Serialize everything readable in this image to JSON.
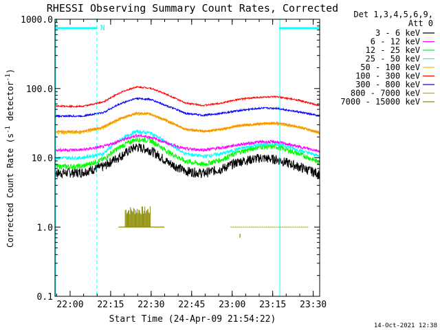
{
  "chart_data": {
    "type": "line",
    "title": "RHESSI Observing Summary Count Rates, Corrected",
    "xlabel": "Start Time (24-Apr-09 21:54:22)",
    "ylabel": "Corrected Count Rate (s",
    "ylabel_sup1": "-1",
    "ylabel_mid": " detector",
    "ylabel_sup2": "-1",
    "ylabel_end": ")",
    "yscale": "log",
    "ylim": [
      0.1,
      1000.0
    ],
    "y_ticks": [
      {
        "value": 1000.0,
        "label": "1000.0"
      },
      {
        "value": 100.0,
        "label": "100.0"
      },
      {
        "value": 10.0,
        "label": "10.0"
      },
      {
        "value": 1.0,
        "label": "1.0"
      },
      {
        "value": 0.1,
        "label": "0.1"
      }
    ],
    "x_unit": "minutes since 21:54:22",
    "xlim": [
      0,
      98
    ],
    "x_ticks": [
      {
        "value": 5.6,
        "label": "22:00"
      },
      {
        "value": 20.6,
        "label": "22:15"
      },
      {
        "value": 35.6,
        "label": "22:30"
      },
      {
        "value": 50.6,
        "label": "22:45"
      },
      {
        "value": 65.6,
        "label": "23:00"
      },
      {
        "value": 80.6,
        "label": "23:15"
      },
      {
        "value": 95.6,
        "label": "23:30"
      }
    ],
    "legend": {
      "position": "top-right",
      "header1": "Det 1,3,4,5,6,9,",
      "header2": "Att 0"
    },
    "series": [
      {
        "name": "3 - 6 keV",
        "color": "#000000",
        "points": [
          [
            0,
            6
          ],
          [
            10,
            6.2
          ],
          [
            18,
            7.5
          ],
          [
            25,
            11
          ],
          [
            30,
            14.5
          ],
          [
            35,
            13
          ],
          [
            42,
            8.5
          ],
          [
            48,
            6.5
          ],
          [
            55,
            6
          ],
          [
            62,
            7
          ],
          [
            68,
            8.8
          ],
          [
            76,
            10
          ],
          [
            82,
            9.5
          ],
          [
            90,
            7.5
          ],
          [
            98,
            5.8
          ]
        ]
      },
      {
        "name": "6 - 12 keV",
        "color": "#ff00ff",
        "points": [
          [
            0,
            13
          ],
          [
            10,
            13
          ],
          [
            18,
            14.5
          ],
          [
            25,
            18
          ],
          [
            30,
            21
          ],
          [
            35,
            20
          ],
          [
            42,
            16
          ],
          [
            48,
            13.5
          ],
          [
            55,
            13
          ],
          [
            62,
            14
          ],
          [
            68,
            15.5
          ],
          [
            76,
            17
          ],
          [
            82,
            17
          ],
          [
            90,
            14.5
          ],
          [
            98,
            12.5
          ]
        ]
      },
      {
        "name": "12 - 25 keV",
        "color": "#00ff00",
        "points": [
          [
            0,
            7.5
          ],
          [
            10,
            7.5
          ],
          [
            18,
            9.5
          ],
          [
            25,
            15
          ],
          [
            30,
            18.5
          ],
          [
            35,
            18
          ],
          [
            42,
            12
          ],
          [
            48,
            9
          ],
          [
            55,
            8
          ],
          [
            62,
            9.5
          ],
          [
            68,
            12
          ],
          [
            76,
            14.5
          ],
          [
            82,
            14.5
          ],
          [
            90,
            11.5
          ],
          [
            98,
            8.5
          ]
        ]
      },
      {
        "name": "25 - 50 keV",
        "color": "#00ffff",
        "points": [
          [
            0,
            10
          ],
          [
            10,
            10
          ],
          [
            18,
            11.5
          ],
          [
            25,
            19
          ],
          [
            30,
            24
          ],
          [
            35,
            23
          ],
          [
            42,
            16
          ],
          [
            48,
            11.5
          ],
          [
            55,
            10.5
          ],
          [
            62,
            11.5
          ],
          [
            68,
            13.5
          ],
          [
            76,
            15.5
          ],
          [
            82,
            16
          ],
          [
            90,
            13
          ],
          [
            98,
            10.5
          ]
        ]
      },
      {
        "name": "50 - 100 keV",
        "color": "#e6c800",
        "points": [
          [
            0,
            23
          ],
          [
            10,
            23
          ],
          [
            18,
            27
          ],
          [
            25,
            37
          ],
          [
            30,
            43
          ],
          [
            35,
            43
          ],
          [
            42,
            34
          ],
          [
            48,
            26
          ],
          [
            55,
            24
          ],
          [
            62,
            26
          ],
          [
            68,
            29
          ],
          [
            76,
            31
          ],
          [
            82,
            31
          ],
          [
            90,
            28
          ],
          [
            98,
            22.5
          ]
        ]
      },
      {
        "name": "100 - 300 keV",
        "color": "#ff0000",
        "points": [
          [
            0,
            56
          ],
          [
            10,
            55
          ],
          [
            18,
            64
          ],
          [
            25,
            90
          ],
          [
            30,
            105
          ],
          [
            35,
            102
          ],
          [
            42,
            80
          ],
          [
            48,
            62
          ],
          [
            55,
            57
          ],
          [
            62,
            62
          ],
          [
            68,
            70
          ],
          [
            76,
            75
          ],
          [
            82,
            76
          ],
          [
            90,
            68
          ],
          [
            98,
            56
          ]
        ]
      },
      {
        "name": "300 - 800 keV",
        "color": "#0000ff",
        "points": [
          [
            0,
            40
          ],
          [
            10,
            40
          ],
          [
            18,
            45
          ],
          [
            25,
            62
          ],
          [
            30,
            72
          ],
          [
            35,
            70
          ],
          [
            42,
            55
          ],
          [
            48,
            44
          ],
          [
            55,
            41
          ],
          [
            62,
            44
          ],
          [
            68,
            48
          ],
          [
            76,
            52
          ],
          [
            82,
            52
          ],
          [
            90,
            46
          ],
          [
            98,
            40
          ]
        ]
      },
      {
        "name": "800 - 7000 keV",
        "color": "#ff8c00",
        "points": [
          [
            0,
            24
          ],
          [
            10,
            24
          ],
          [
            18,
            28
          ],
          [
            25,
            38
          ],
          [
            30,
            44
          ],
          [
            35,
            43
          ],
          [
            42,
            33
          ],
          [
            48,
            26
          ],
          [
            55,
            24
          ],
          [
            62,
            26
          ],
          [
            68,
            29
          ],
          [
            76,
            31
          ],
          [
            82,
            32
          ],
          [
            90,
            28
          ],
          [
            98,
            23
          ]
        ]
      },
      {
        "name": "7000 - 15000 keV",
        "color": "#8b8b00",
        "points": [
          [
            24,
            1.0
          ],
          [
            40,
            1.0
          ],
          [
            68,
            1.0
          ],
          [
            94,
            1.0
          ]
        ]
      }
    ],
    "markers": {
      "top_bar_label": "N",
      "lines_solid_min": [
        0,
        83
      ],
      "lines_dashed_min": [
        15.5,
        98
      ]
    },
    "timestamp": "14-Oct-2021 12:38"
  }
}
